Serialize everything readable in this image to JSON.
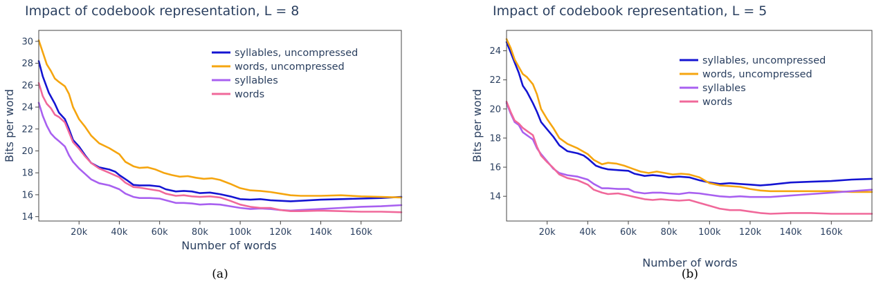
{
  "chart_data": [
    {
      "type": "line",
      "title": "Impact of codebook representation, L = 8",
      "xlabel": "Number of words",
      "ylabel": "Bits per word",
      "caption": "(a)",
      "xlim": [
        0,
        180000
      ],
      "ylim": [
        13.6,
        31
      ],
      "xticks": [
        20000,
        40000,
        60000,
        80000,
        100000,
        120000,
        140000,
        160000
      ],
      "xtick_labels": [
        "20k",
        "40k",
        "60k",
        "80k",
        "100k",
        "120k",
        "140k",
        "160k"
      ],
      "yticks": [
        14,
        16,
        18,
        20,
        22,
        24,
        26,
        28,
        30
      ],
      "ytick_labels": [
        "14",
        "16",
        "18",
        "20",
        "22",
        "24",
        "26",
        "28",
        "30"
      ],
      "grid": false,
      "legend": "top-right",
      "series": [
        {
          "name": "syllables, uncompressed",
          "color": "#1414d2",
          "x": [
            0,
            2000,
            5000,
            8000,
            10000,
            13000,
            15000,
            17000,
            20000,
            23000,
            26000,
            30000,
            35000,
            38000,
            40000,
            44000,
            47000,
            50000,
            55000,
            60000,
            63000,
            68000,
            72000,
            76000,
            80000,
            85000,
            90000,
            95000,
            100000,
            105000,
            110000,
            115000,
            120000,
            125000,
            130000,
            140000,
            150000,
            160000,
            170000,
            180000
          ],
          "y": [
            28.2,
            26.8,
            25.3,
            24.3,
            23.5,
            22.9,
            22.0,
            21.0,
            20.4,
            19.6,
            18.9,
            18.5,
            18.3,
            18.1,
            17.8,
            17.3,
            16.9,
            16.85,
            16.85,
            16.75,
            16.5,
            16.3,
            16.35,
            16.3,
            16.15,
            16.2,
            16.05,
            15.85,
            15.6,
            15.55,
            15.6,
            15.5,
            15.45,
            15.4,
            15.45,
            15.55,
            15.6,
            15.65,
            15.7,
            15.8
          ]
        },
        {
          "name": "words, uncompressed",
          "color": "#f5a50f",
          "x": [
            0,
            2000,
            4000,
            6000,
            8000,
            10000,
            13000,
            15000,
            17000,
            20000,
            23000,
            26000,
            30000,
            35000,
            40000,
            43000,
            47000,
            50000,
            54000,
            58000,
            62000,
            66000,
            70000,
            74000,
            78000,
            82000,
            86000,
            90000,
            95000,
            100000,
            105000,
            110000,
            115000,
            120000,
            125000,
            130000,
            140000,
            150000,
            160000,
            170000,
            180000
          ],
          "y": [
            30.1,
            29.0,
            27.9,
            27.3,
            26.6,
            26.3,
            25.9,
            25.2,
            24.0,
            22.9,
            22.2,
            21.4,
            20.7,
            20.25,
            19.7,
            19.0,
            18.6,
            18.45,
            18.5,
            18.3,
            18.0,
            17.8,
            17.65,
            17.7,
            17.55,
            17.45,
            17.5,
            17.35,
            17.0,
            16.6,
            16.4,
            16.35,
            16.25,
            16.1,
            15.95,
            15.9,
            15.9,
            15.95,
            15.85,
            15.8,
            15.75
          ]
        },
        {
          "name": "syllables",
          "color": "#a860f0",
          "x": [
            0,
            2000,
            4000,
            6000,
            8000,
            10000,
            13000,
            15000,
            17000,
            20000,
            23000,
            26000,
            30000,
            35000,
            40000,
            43000,
            47000,
            50000,
            55000,
            60000,
            63000,
            68000,
            72000,
            76000,
            80000,
            85000,
            90000,
            95000,
            100000,
            105000,
            110000,
            115000,
            120000,
            125000,
            130000,
            140000,
            150000,
            160000,
            170000,
            180000
          ],
          "y": [
            24.4,
            23.2,
            22.3,
            21.6,
            21.2,
            20.9,
            20.4,
            19.6,
            19.0,
            18.4,
            17.9,
            17.4,
            17.05,
            16.85,
            16.5,
            16.1,
            15.8,
            15.7,
            15.7,
            15.65,
            15.5,
            15.25,
            15.25,
            15.2,
            15.1,
            15.15,
            15.1,
            14.95,
            14.8,
            14.7,
            14.75,
            14.7,
            14.6,
            14.55,
            14.6,
            14.7,
            14.8,
            14.9,
            14.95,
            15.05
          ]
        },
        {
          "name": "words",
          "color": "#f0689a",
          "x": [
            0,
            2000,
            4000,
            6000,
            8000,
            10000,
            13000,
            15000,
            17000,
            20000,
            23000,
            26000,
            30000,
            35000,
            40000,
            43000,
            47000,
            50000,
            55000,
            60000,
            63000,
            68000,
            72000,
            76000,
            80000,
            85000,
            90000,
            95000,
            100000,
            105000,
            110000,
            115000,
            120000,
            125000,
            130000,
            140000,
            150000,
            160000,
            170000,
            180000
          ],
          "y": [
            26.2,
            25.0,
            24.3,
            23.9,
            23.3,
            23.1,
            22.6,
            21.7,
            20.8,
            20.2,
            19.5,
            18.9,
            18.4,
            18.0,
            17.6,
            17.1,
            16.7,
            16.65,
            16.5,
            16.35,
            16.1,
            15.9,
            15.95,
            15.85,
            15.8,
            15.85,
            15.75,
            15.45,
            15.1,
            14.9,
            14.8,
            14.8,
            14.6,
            14.5,
            14.5,
            14.55,
            14.5,
            14.45,
            14.45,
            14.4
          ]
        }
      ]
    },
    {
      "type": "line",
      "title": "Impact of codebook representation, L = 5",
      "xlabel": "Number of words",
      "ylabel": "Bits per word",
      "caption": "(b)",
      "xlim": [
        0,
        180000
      ],
      "ylim": [
        12.3,
        25.4
      ],
      "xticks": [
        20000,
        40000,
        60000,
        80000,
        100000,
        120000,
        140000,
        160000
      ],
      "xtick_labels": [
        "20k",
        "40k",
        "60k",
        "80k",
        "100k",
        "120k",
        "140k",
        "160k"
      ],
      "yticks": [
        14,
        16,
        18,
        20,
        22,
        24
      ],
      "ytick_labels": [
        "14",
        "16",
        "18",
        "20",
        "22",
        "24"
      ],
      "grid": false,
      "legend": "top-right",
      "series": [
        {
          "name": "syllables, uncompressed",
          "color": "#1414d2",
          "x": [
            0,
            2000,
            4000,
            6000,
            8000,
            10000,
            13000,
            15000,
            17000,
            20000,
            23000,
            26000,
            30000,
            35000,
            38000,
            40000,
            44000,
            47000,
            50000,
            55000,
            60000,
            63000,
            68000,
            72000,
            76000,
            80000,
            85000,
            90000,
            95000,
            100000,
            105000,
            110000,
            115000,
            120000,
            125000,
            130000,
            140000,
            150000,
            160000,
            170000,
            180000
          ],
          "y": [
            24.6,
            23.9,
            23.2,
            22.5,
            21.6,
            21.2,
            20.4,
            19.8,
            19.1,
            18.6,
            18.1,
            17.5,
            17.1,
            16.95,
            16.8,
            16.6,
            16.1,
            15.95,
            15.85,
            15.8,
            15.75,
            15.55,
            15.4,
            15.45,
            15.4,
            15.3,
            15.35,
            15.3,
            15.1,
            14.95,
            14.85,
            14.9,
            14.85,
            14.8,
            14.75,
            14.8,
            14.95,
            15.0,
            15.05,
            15.15,
            15.2
          ]
        },
        {
          "name": "words, uncompressed",
          "color": "#f5a50f",
          "x": [
            0,
            2000,
            4000,
            6000,
            8000,
            10000,
            13000,
            15000,
            17000,
            20000,
            23000,
            26000,
            30000,
            35000,
            40000,
            43000,
            47000,
            50000,
            54000,
            58000,
            62000,
            66000,
            70000,
            74000,
            78000,
            82000,
            86000,
            90000,
            95000,
            100000,
            105000,
            110000,
            115000,
            120000,
            125000,
            130000,
            140000,
            150000,
            160000,
            170000,
            180000
          ],
          "y": [
            24.8,
            24.2,
            23.4,
            22.9,
            22.4,
            22.2,
            21.7,
            21.0,
            20.0,
            19.3,
            18.7,
            18.0,
            17.6,
            17.3,
            16.9,
            16.5,
            16.2,
            16.3,
            16.25,
            16.1,
            15.9,
            15.7,
            15.6,
            15.7,
            15.6,
            15.5,
            15.55,
            15.5,
            15.3,
            14.9,
            14.75,
            14.7,
            14.65,
            14.5,
            14.4,
            14.35,
            14.35,
            14.35,
            14.35,
            14.3,
            14.3
          ]
        },
        {
          "name": "syllables",
          "color": "#a860f0",
          "x": [
            0,
            2000,
            4000,
            6000,
            8000,
            10000,
            13000,
            15000,
            17000,
            20000,
            23000,
            26000,
            30000,
            35000,
            40000,
            43000,
            47000,
            50000,
            55000,
            60000,
            63000,
            68000,
            72000,
            76000,
            80000,
            85000,
            90000,
            95000,
            100000,
            105000,
            110000,
            115000,
            120000,
            125000,
            130000,
            140000,
            150000,
            160000,
            170000,
            180000
          ],
          "y": [
            20.4,
            19.7,
            19.1,
            18.9,
            18.4,
            18.2,
            17.9,
            17.3,
            16.9,
            16.4,
            15.9,
            15.6,
            15.45,
            15.35,
            15.15,
            14.85,
            14.55,
            14.55,
            14.5,
            14.5,
            14.3,
            14.2,
            14.25,
            14.25,
            14.2,
            14.15,
            14.25,
            14.2,
            14.1,
            14.0,
            13.95,
            14.0,
            13.95,
            13.95,
            13.95,
            14.05,
            14.15,
            14.25,
            14.35,
            14.45
          ]
        },
        {
          "name": "words",
          "color": "#f0689a",
          "x": [
            0,
            2000,
            4000,
            6000,
            8000,
            10000,
            13000,
            15000,
            17000,
            20000,
            23000,
            26000,
            30000,
            35000,
            40000,
            43000,
            47000,
            50000,
            55000,
            60000,
            63000,
            68000,
            72000,
            76000,
            80000,
            85000,
            90000,
            95000,
            100000,
            105000,
            110000,
            115000,
            120000,
            125000,
            130000,
            140000,
            150000,
            160000,
            170000,
            180000
          ],
          "y": [
            20.5,
            19.8,
            19.2,
            19.0,
            18.7,
            18.5,
            18.2,
            17.4,
            16.8,
            16.35,
            15.95,
            15.5,
            15.25,
            15.1,
            14.8,
            14.45,
            14.25,
            14.15,
            14.2,
            14.05,
            13.95,
            13.8,
            13.75,
            13.8,
            13.75,
            13.7,
            13.75,
            13.55,
            13.35,
            13.15,
            13.05,
            13.05,
            12.95,
            12.85,
            12.8,
            12.85,
            12.85,
            12.8,
            12.8,
            12.8
          ]
        }
      ]
    }
  ]
}
